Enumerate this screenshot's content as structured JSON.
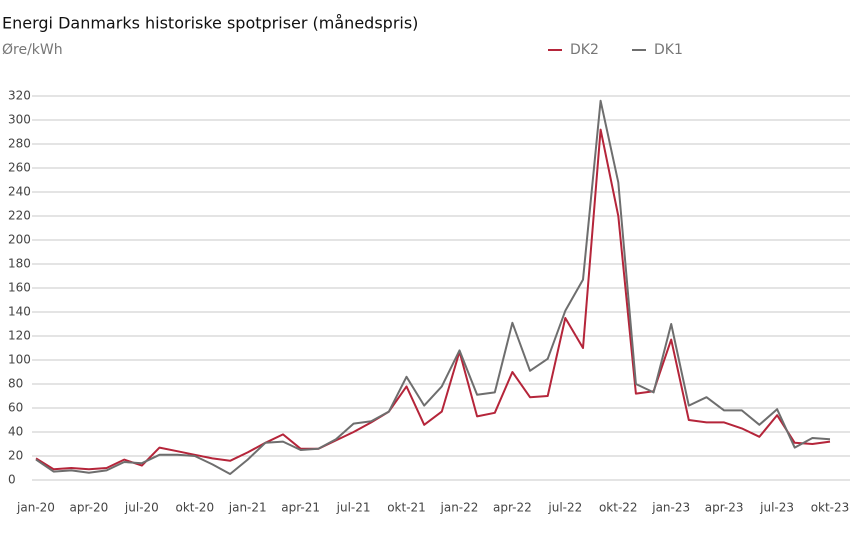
{
  "chart_data": {
    "type": "line",
    "title": "Energi Danmarks historiske spotpriser (månedspris)",
    "y_label": "Øre/kWh",
    "categories": [
      "jan-20",
      null,
      null,
      "apr-20",
      null,
      null,
      "jul-20",
      null,
      null,
      "okt-20",
      null,
      null,
      "jan-21",
      null,
      null,
      "apr-21",
      null,
      null,
      "jul-21",
      null,
      null,
      "okt-21",
      null,
      null,
      "jan-22",
      null,
      null,
      "apr-22",
      null,
      null,
      "jul-22",
      null,
      null,
      "okt-22",
      null,
      null,
      "jan-23",
      null,
      null,
      "apr-23",
      null,
      null,
      "jul-23",
      null,
      null,
      "okt-23"
    ],
    "series": [
      {
        "name": "DK2",
        "color": "#b5253a",
        "values": [
          18,
          9,
          10,
          9,
          10,
          17,
          12,
          27,
          24,
          21,
          18,
          16,
          23,
          31,
          38,
          26,
          26,
          33,
          40,
          48,
          57,
          78,
          46,
          57,
          107,
          53,
          56,
          90,
          69,
          70,
          135,
          110,
          292,
          220,
          72,
          74,
          117,
          50,
          48,
          48,
          43,
          36,
          54,
          31,
          30,
          32
        ]
      },
      {
        "name": "DK1",
        "color": "#6e6e6e",
        "values": [
          17,
          7,
          8,
          6,
          8,
          15,
          14,
          21,
          21,
          20,
          13,
          5,
          17,
          31,
          32,
          25,
          26,
          34,
          47,
          49,
          57,
          86,
          62,
          78,
          108,
          71,
          73,
          131,
          91,
          101,
          141,
          167,
          316,
          248,
          80,
          73,
          130,
          62,
          69,
          58,
          58,
          46,
          59,
          27,
          35,
          34
        ]
      }
    ],
    "ylim": [
      0,
      320
    ],
    "yticks": [
      0,
      20,
      40,
      60,
      80,
      100,
      120,
      140,
      160,
      180,
      200,
      220,
      240,
      260,
      280,
      300,
      320
    ],
    "grid": true,
    "legend": "top-right"
  }
}
